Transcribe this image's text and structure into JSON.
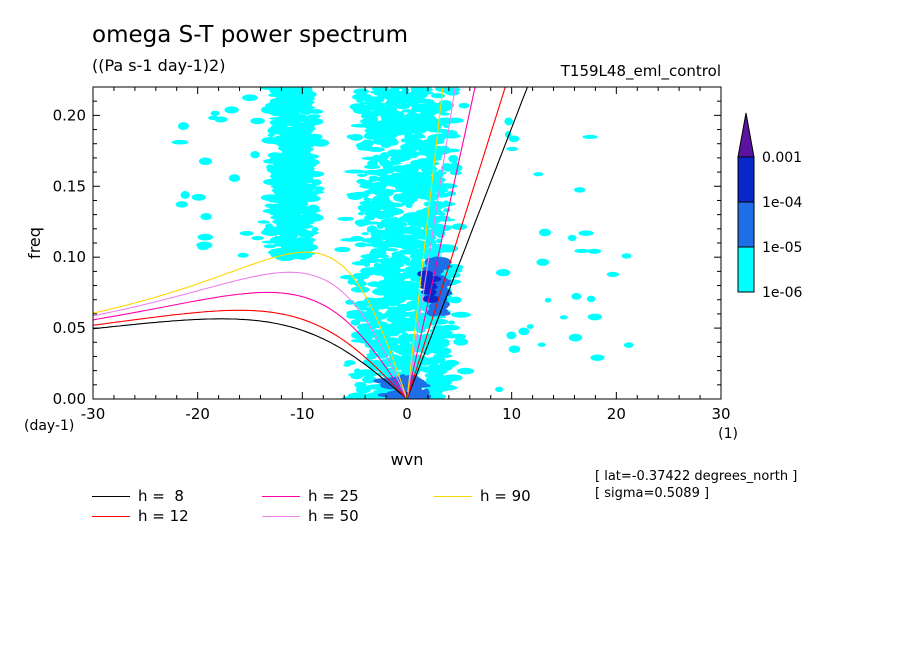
{
  "header": {
    "title": "omega S-T power spectrum",
    "units": "((Pa s-1 day-1)2)",
    "experiment": "T159L48_eml_control"
  },
  "meta": {
    "lat": "[ lat=-0.37422 degrees_north ]",
    "sigma": "[ sigma=0.5089 ]"
  },
  "colors": {
    "level1": "#00ffff",
    "level2": "#1e6ee8",
    "level3": "#0a28c8",
    "level4": "#5a14a0"
  },
  "chart_data": {
    "type": "heatmap",
    "title": "omega S-T power spectrum",
    "subtitle": "((Pa s-1 day-1)2)",
    "xlabel": "wvn",
    "ylabel": "freq",
    "x_unit_label": "(1)",
    "y_unit_label": "(day-1)",
    "xlim": [
      -30,
      30
    ],
    "ylim": [
      0,
      0.22
    ],
    "x_ticks": [
      -30,
      -20,
      -10,
      0,
      10,
      20,
      30
    ],
    "x_tick_labels": [
      "-30",
      "-20",
      "-10",
      "0",
      "10",
      "20",
      "30"
    ],
    "y_ticks": [
      0,
      0.05,
      0.1,
      0.15,
      0.2
    ],
    "y_tick_labels": [
      "0.00",
      "0.05",
      "0.10",
      "0.15",
      "0.20"
    ],
    "colorbar": {
      "labels": [
        "1e-06",
        "1e-05",
        "1e-04",
        "0.001"
      ],
      "levels": [
        1e-06,
        1e-05,
        0.0001,
        0.001
      ],
      "colors": [
        "#00ffff",
        "#1e6ee8",
        "#0a28c8",
        "#5a14a0"
      ],
      "extend": "max"
    },
    "power_regions": [
      {
        "level": 1,
        "wvn_center": -2,
        "wvn_half_width": 4.5,
        "freq_min": 0,
        "freq_max": 0.22
      },
      {
        "level": 1,
        "wvn_center": 2,
        "wvn_half_width": 4,
        "freq_min": 0,
        "freq_max": 0.22
      },
      {
        "level": 1,
        "wvn_center": -11,
        "wvn_half_width": 3,
        "freq_min": 0.1,
        "freq_max": 0.22
      },
      {
        "level": 2,
        "wvn_center": 0,
        "wvn_half_width": 2.5,
        "freq_min": 0,
        "freq_max": 0.015
      },
      {
        "level": 2,
        "wvn_center": 3,
        "wvn_half_width": 1,
        "freq_min": 0.06,
        "freq_max": 0.1
      },
      {
        "level": 3,
        "wvn_center": 2,
        "wvn_half_width": 0.6,
        "freq_min": 0.07,
        "freq_max": 0.09
      }
    ],
    "series": [
      {
        "name": "h =  8",
        "h": 8,
        "color": "#000000"
      },
      {
        "name": "h = 12",
        "h": 12,
        "color": "#ff0000"
      },
      {
        "name": "h = 25",
        "h": 25,
        "color": "#ff00aa"
      },
      {
        "name": "h = 50",
        "h": 50,
        "color": "#ee82ee"
      },
      {
        "name": "h = 90",
        "h": 90,
        "color": "#ffd700"
      }
    ],
    "legend": [
      {
        "label": "h =  8",
        "color": "#000000"
      },
      {
        "label": "h = 12",
        "color": "#ff0000"
      },
      {
        "label": "h = 25",
        "color": "#ff00aa"
      },
      {
        "label": "h = 50",
        "color": "#ee82ee"
      },
      {
        "label": "h = 90",
        "color": "#ffd700"
      }
    ]
  }
}
